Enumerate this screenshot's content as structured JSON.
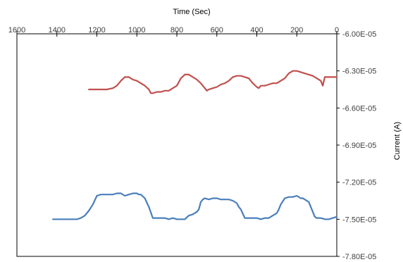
{
  "chart_data": {
    "type": "line",
    "title": "",
    "xlabel": "Time (Sec)",
    "ylabel": "Current (A)",
    "xlim": [
      1600,
      0
    ],
    "ylim": [
      -7.8e-05,
      -6e-05
    ],
    "x_axis_position": "top",
    "y_axis_position": "right",
    "x_ticks": [
      "1600",
      "1400",
      "1200",
      "1000",
      "800",
      "600",
      "400",
      "200",
      "0"
    ],
    "y_ticks": [
      "-6.00E-05",
      "-6.30E-05",
      "-6.60E-05",
      "-6.90E-05",
      "-7.20E-05",
      "-7.50E-05",
      "-7.80E-05"
    ],
    "grid": false,
    "legend": "none",
    "series": [
      {
        "color": "#c0504d",
        "x": [
          1240,
          1200,
          1150,
          1120,
          1100,
          1080,
          1060,
          1040,
          1020,
          1000,
          980,
          960,
          940,
          930,
          920,
          900,
          880,
          860,
          840,
          820,
          800,
          780,
          760,
          740,
          720,
          700,
          680,
          660,
          650,
          640,
          620,
          600,
          580,
          560,
          540,
          520,
          500,
          480,
          460,
          440,
          420,
          400,
          390,
          380,
          360,
          340,
          320,
          300,
          280,
          260,
          240,
          220,
          200,
          180,
          160,
          140,
          120,
          100,
          80,
          70,
          60,
          50,
          40,
          20,
          0
        ],
        "y": [
          -6.45e-05,
          -6.45e-05,
          -6.45e-05,
          -6.44e-05,
          -6.42e-05,
          -6.38e-05,
          -6.35e-05,
          -6.35e-05,
          -6.37e-05,
          -6.38e-05,
          -6.4e-05,
          -6.42e-05,
          -6.45e-05,
          -6.48e-05,
          -6.48e-05,
          -6.47e-05,
          -6.47e-05,
          -6.46e-05,
          -6.46e-05,
          -6.44e-05,
          -6.42e-05,
          -6.36e-05,
          -6.33e-05,
          -6.33e-05,
          -6.35e-05,
          -6.37e-05,
          -6.4e-05,
          -6.44e-05,
          -6.46e-05,
          -6.45e-05,
          -6.44e-05,
          -6.43e-05,
          -6.41e-05,
          -6.4e-05,
          -6.38e-05,
          -6.35e-05,
          -6.34e-05,
          -6.34e-05,
          -6.35e-05,
          -6.36e-05,
          -6.4e-05,
          -6.43e-05,
          -6.44e-05,
          -6.42e-05,
          -6.42e-05,
          -6.41e-05,
          -6.4e-05,
          -6.4e-05,
          -6.38e-05,
          -6.36e-05,
          -6.32e-05,
          -6.3e-05,
          -6.3e-05,
          -6.31e-05,
          -6.32e-05,
          -6.33e-05,
          -6.34e-05,
          -6.36e-05,
          -6.38e-05,
          -6.42e-05,
          -6.35e-05,
          -6.35e-05,
          -6.35e-05,
          -6.35e-05,
          -6.35e-05
        ]
      },
      {
        "color": "#4a7ebb",
        "x": [
          1420,
          1360,
          1300,
          1280,
          1260,
          1240,
          1220,
          1200,
          1180,
          1160,
          1120,
          1100,
          1080,
          1060,
          1040,
          1020,
          1000,
          990,
          980,
          960,
          940,
          920,
          900,
          880,
          860,
          840,
          820,
          800,
          780,
          760,
          740,
          720,
          700,
          690,
          680,
          670,
          660,
          640,
          620,
          600,
          580,
          560,
          540,
          520,
          500,
          490,
          480,
          460,
          440,
          420,
          400,
          380,
          360,
          340,
          320,
          300,
          290,
          280,
          260,
          240,
          220,
          200,
          180,
          170,
          160,
          140,
          130,
          120,
          110,
          100,
          80,
          60,
          40,
          20,
          0
        ],
        "y": [
          -7.5e-05,
          -7.5e-05,
          -7.5e-05,
          -7.49e-05,
          -7.47e-05,
          -7.43e-05,
          -7.38e-05,
          -7.31e-05,
          -7.3e-05,
          -7.3e-05,
          -7.3e-05,
          -7.29e-05,
          -7.29e-05,
          -7.31e-05,
          -7.3e-05,
          -7.29e-05,
          -7.29e-05,
          -7.3e-05,
          -7.3e-05,
          -7.33e-05,
          -7.4e-05,
          -7.49e-05,
          -7.49e-05,
          -7.49e-05,
          -7.49e-05,
          -7.5e-05,
          -7.49e-05,
          -7.5e-05,
          -7.5e-05,
          -7.5e-05,
          -7.47e-05,
          -7.46e-05,
          -7.44e-05,
          -7.42e-05,
          -7.36e-05,
          -7.34e-05,
          -7.33e-05,
          -7.34e-05,
          -7.33e-05,
          -7.33e-05,
          -7.34e-05,
          -7.34e-05,
          -7.34e-05,
          -7.35e-05,
          -7.37e-05,
          -7.4e-05,
          -7.42e-05,
          -7.49e-05,
          -7.49e-05,
          -7.49e-05,
          -7.49e-05,
          -7.5e-05,
          -7.49e-05,
          -7.49e-05,
          -7.47e-05,
          -7.45e-05,
          -7.42e-05,
          -7.38e-05,
          -7.33e-05,
          -7.32e-05,
          -7.32e-05,
          -7.31e-05,
          -7.33e-05,
          -7.33e-05,
          -7.34e-05,
          -7.36e-05,
          -7.4e-05,
          -7.44e-05,
          -7.48e-05,
          -7.49e-05,
          -7.49e-05,
          -7.5e-05,
          -7.5e-05,
          -7.49e-05,
          -7.48e-05
        ]
      }
    ]
  }
}
